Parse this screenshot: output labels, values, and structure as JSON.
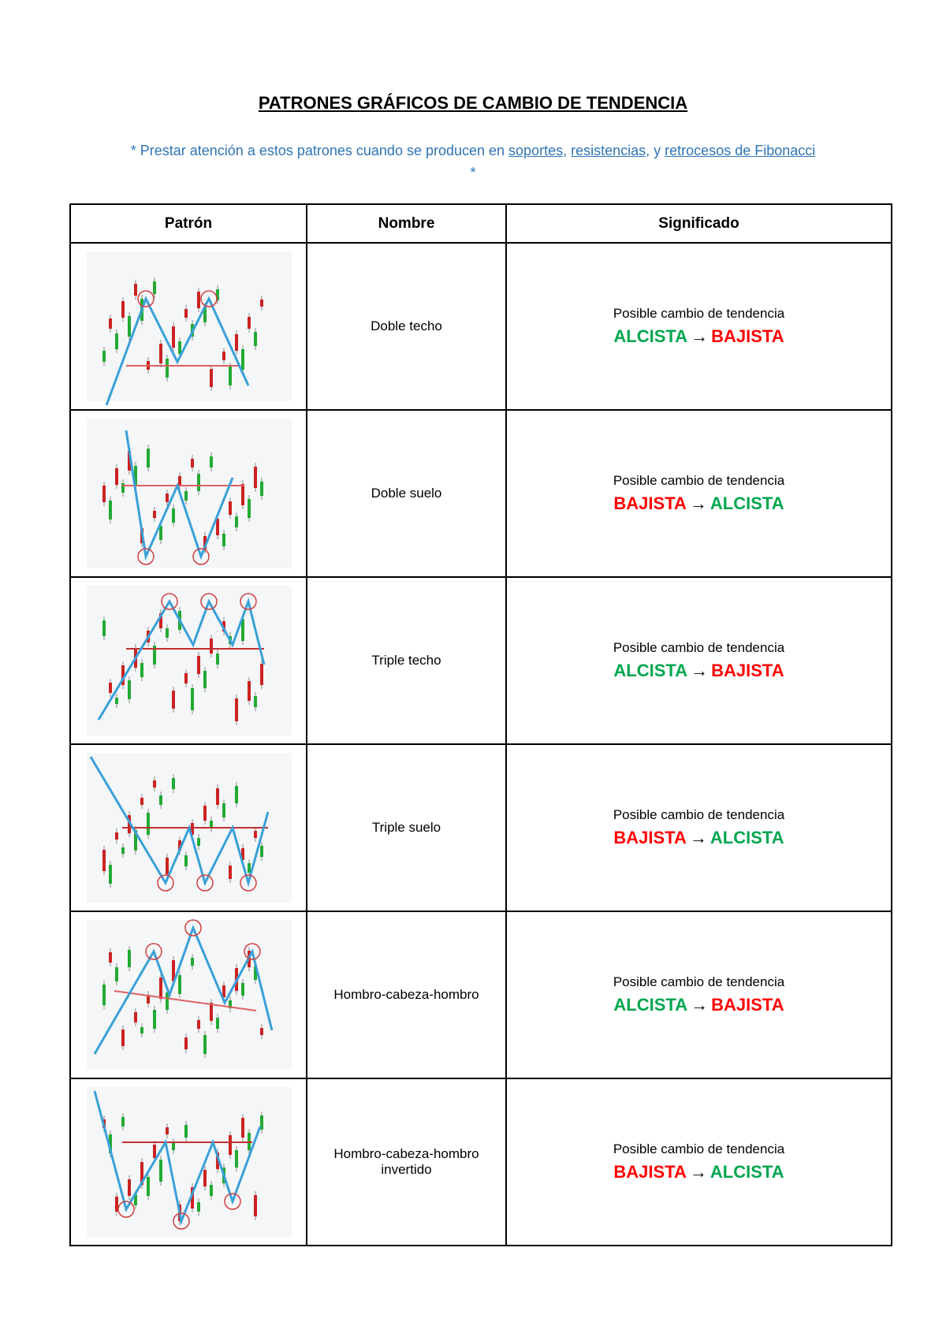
{
  "title": "PATRONES GRÁFICOS DE CAMBIO DE TENDENCIA",
  "note": {
    "prefix": "* Prestar atención a estos patrones cuando se producen en ",
    "link1": "soportes",
    "sep1": ", ",
    "link2": "resistencias",
    "sep2": ", y ",
    "link3": "retrocesos de Fibonacci",
    "suffix": " *"
  },
  "table": {
    "headers": [
      "Patrón",
      "Nombre",
      "Significado"
    ],
    "rows": [
      {
        "name": "Doble techo",
        "name_line2": "",
        "meaning": "Posible cambio de tendencia",
        "from": "ALCISTA",
        "arrow": "→",
        "to": "BAJISTA",
        "image_icon": "double-top-chart-icon",
        "from_color": "#00a64f",
        "to_color": "#ff0000"
      },
      {
        "name": "Doble suelo",
        "name_line2": "",
        "meaning": "Posible cambio de tendencia",
        "from": "BAJISTA",
        "arrow": "→",
        "to": "ALCISTA",
        "image_icon": "double-bottom-chart-icon",
        "from_color": "#ff0000",
        "to_color": "#00a64f"
      },
      {
        "name": "Triple techo",
        "name_line2": "",
        "meaning": "Posible cambio de tendencia",
        "from": "ALCISTA",
        "arrow": "→",
        "to": "BAJISTA",
        "image_icon": "triple-top-chart-icon",
        "from_color": "#00a64f",
        "to_color": "#ff0000"
      },
      {
        "name": "Triple suelo",
        "name_line2": "",
        "meaning": "Posible cambio de tendencia",
        "from": "BAJISTA",
        "arrow": "→",
        "to": "ALCISTA",
        "image_icon": "triple-bottom-chart-icon",
        "from_color": "#ff0000",
        "to_color": "#00a64f"
      },
      {
        "name": "Hombro-cabeza-hombro",
        "name_line2": "",
        "meaning": "Posible cambio de tendencia",
        "from": "ALCISTA",
        "arrow": "→",
        "to": "BAJISTA",
        "image_icon": "head-and-shoulders-chart-icon",
        "from_color": "#00a64f",
        "to_color": "#ff0000"
      },
      {
        "name": "Hombro-cabeza-hombro",
        "name_line2": "invertido",
        "meaning": "Posible cambio de tendencia",
        "from": "BAJISTA",
        "arrow": "→",
        "to": "ALCISTA",
        "image_icon": "inverse-head-and-shoulders-chart-icon",
        "from_color": "#ff0000",
        "to_color": "#00a64f"
      }
    ]
  }
}
